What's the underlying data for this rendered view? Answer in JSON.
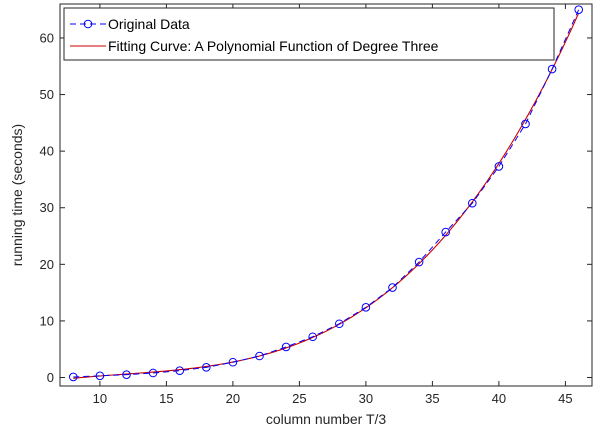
{
  "chart_data": {
    "type": "line",
    "xlabel": "column number  T/3",
    "ylabel": "running time (seconds)",
    "xlim": [
      7,
      47
    ],
    "ylim": [
      -1.5,
      66
    ],
    "xticks": [
      10,
      15,
      20,
      25,
      30,
      35,
      40,
      45
    ],
    "yticks": [
      0,
      10,
      20,
      30,
      40,
      50,
      60
    ],
    "grid": false,
    "legend_position": "top-left",
    "series": [
      {
        "name": "Original Data",
        "style": "dashed line with circle markers",
        "color": "#0000ff",
        "x": [
          8,
          10,
          12,
          14,
          16,
          18,
          20,
          22,
          24,
          26,
          28,
          30,
          32,
          34,
          36,
          38,
          40,
          42,
          44,
          46
        ],
        "y": [
          0.1,
          0.3,
          0.5,
          0.8,
          1.2,
          1.8,
          2.7,
          3.8,
          5.4,
          7.2,
          9.5,
          12.4,
          15.9,
          20.4,
          25.7,
          30.8,
          37.3,
          44.8,
          54.5,
          65.0
        ]
      },
      {
        "name": "Fitting Curve: A Polynomial Function of Degree Three",
        "style": "solid line",
        "color": "#cc0000",
        "fit_degree": 3
      }
    ]
  }
}
